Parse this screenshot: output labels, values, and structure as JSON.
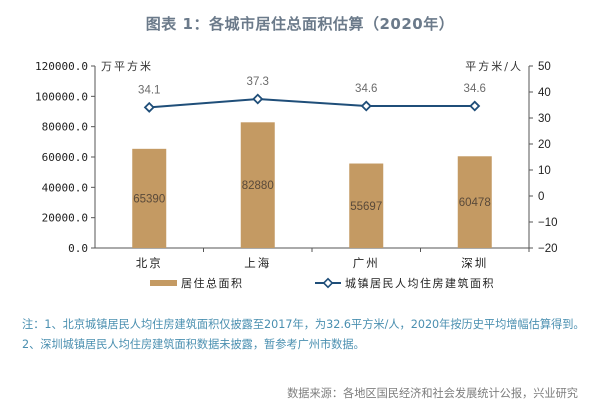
{
  "title": "图表 1：各城市居住总面积估算（2020年）",
  "colors": {
    "bar": "#c49a63",
    "line": "#1f4e79",
    "marker_fill": "#ffffff",
    "axis": "#555555",
    "title": "#6b7a8a",
    "notes": "#4a8fb0",
    "source": "#7d7d7d"
  },
  "chart_data": {
    "type": "bar+line",
    "title": "图表 1：各城市居住总面积估算（2020年）",
    "categories": [
      "北京",
      "上海",
      "广州",
      "深圳"
    ],
    "series": [
      {
        "name": "居住总面积",
        "type": "bar",
        "axis": "left",
        "values": [
          65390,
          82880,
          55697,
          60478
        ],
        "labels": [
          "65390",
          "82880",
          "55697",
          "60478"
        ]
      },
      {
        "name": "城镇居民人均住房建筑面积",
        "type": "line",
        "axis": "right",
        "values": [
          34.1,
          37.3,
          34.6,
          34.6
        ],
        "labels": [
          "34.1",
          "37.3",
          "34.6",
          "34.6"
        ]
      }
    ],
    "y_left": {
      "label": "万平方米",
      "ylim": [
        0,
        120000
      ],
      "ticks": [
        "120000.0",
        "100000.0",
        "80000.0",
        "60000.0",
        "40000.0",
        "20000.0",
        "0.0"
      ]
    },
    "y_right": {
      "label": "平方米/人",
      "ylim": [
        -20,
        50
      ],
      "ticks": [
        "50",
        "40",
        "30",
        "20",
        "10",
        "0",
        "-10",
        "-20"
      ]
    },
    "grid": false,
    "legend_position": "bottom"
  },
  "legend": {
    "bar_label": "居住总面积",
    "line_label": "城镇居民人均住房建筑面积"
  },
  "notes": {
    "line1": "注：1、北京城镇居民人均住房建筑面积仅披露至2017年，为32.6平方米/人，2020年按历史平均增幅估算得到。",
    "line2": "2、深圳城镇居民人均住房建筑面积数据未披露，暂参考广州市数据。"
  },
  "source": "数据来源：各地区国民经济和社会发展统计公报，兴业研究"
}
